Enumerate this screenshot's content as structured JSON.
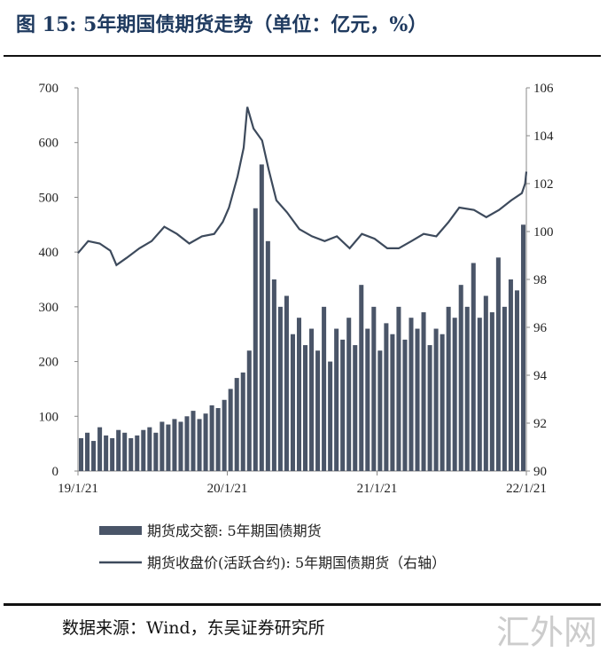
{
  "title": "图 15: 5年期国债期货走势（单位：亿元，%）",
  "source": "数据来源：Wind，东吴证券研究所",
  "watermark": "汇外网",
  "chart_data": {
    "type": "bar+line",
    "title": "图 15: 5年期国债期货走势（单位：亿元，%）",
    "y_left": {
      "range": [
        0,
        700
      ],
      "ticks": [
        "0",
        "100",
        "200",
        "300",
        "400",
        "500",
        "600",
        "700"
      ]
    },
    "y_right": {
      "range": [
        90,
        106
      ],
      "ticks": [
        "90",
        "92",
        "94",
        "96",
        "98",
        "100",
        "102",
        "104",
        "106"
      ]
    },
    "x_range": [
      "2019-01-21",
      "2022-01-21"
    ],
    "x_ticks": [
      {
        "date": "2019-01-21",
        "label": "19/1/21"
      },
      {
        "date": "2020-01-21",
        "label": "20/1/21"
      },
      {
        "date": "2021-01-21",
        "label": "21/1/21"
      },
      {
        "date": "2022-01-21",
        "label": "22/1/21"
      }
    ],
    "colors": {
      "bars": "#4a5568",
      "line": "#3d4a5c"
    },
    "legend": {
      "placement": "bottom",
      "entries": [
        "期货成交额: 5年期国债期货",
        "期货收盘价(活跃合约): 5年期国债期货（右轴）"
      ]
    },
    "series": [
      {
        "name": "期货成交额: 5年期国债期货",
        "type": "bar",
        "axis": "left",
        "values": [
          60,
          70,
          55,
          80,
          65,
          60,
          75,
          70,
          60,
          65,
          75,
          80,
          70,
          90,
          85,
          95,
          90,
          100,
          110,
          95,
          105,
          120,
          115,
          130,
          150,
          170,
          180,
          220,
          480,
          560,
          420,
          350,
          300,
          320,
          250,
          280,
          230,
          260,
          220,
          300,
          200,
          260,
          240,
          280,
          230,
          340,
          260,
          300,
          220,
          270,
          250,
          300,
          240,
          280,
          260,
          290,
          230,
          260,
          250,
          300,
          280,
          340,
          300,
          380,
          280,
          320,
          290,
          390,
          300,
          350,
          330,
          450
        ]
      },
      {
        "name": "期货收盘价(活跃合约): 5年期国债期货（右轴）",
        "type": "line",
        "axis": "right",
        "points": [
          [
            "2019-01-21",
            99.1
          ],
          [
            "2019-02-15",
            99.6
          ],
          [
            "2019-03-15",
            99.5
          ],
          [
            "2019-04-10",
            99.2
          ],
          [
            "2019-04-25",
            98.6
          ],
          [
            "2019-05-20",
            98.9
          ],
          [
            "2019-06-20",
            99.3
          ],
          [
            "2019-07-20",
            99.6
          ],
          [
            "2019-08-20",
            100.2
          ],
          [
            "2019-09-20",
            99.9
          ],
          [
            "2019-10-20",
            99.5
          ],
          [
            "2019-11-20",
            99.8
          ],
          [
            "2019-12-20",
            99.9
          ],
          [
            "2020-01-10",
            100.4
          ],
          [
            "2020-01-25",
            101.0
          ],
          [
            "2020-02-15",
            102.3
          ],
          [
            "2020-03-01",
            103.5
          ],
          [
            "2020-03-10",
            105.2
          ],
          [
            "2020-03-25",
            104.3
          ],
          [
            "2020-04-15",
            103.8
          ],
          [
            "2020-05-01",
            102.6
          ],
          [
            "2020-05-20",
            101.3
          ],
          [
            "2020-06-15",
            100.8
          ],
          [
            "2020-07-15",
            100.1
          ],
          [
            "2020-08-15",
            99.8
          ],
          [
            "2020-09-15",
            99.6
          ],
          [
            "2020-10-15",
            99.8
          ],
          [
            "2020-11-15",
            99.3
          ],
          [
            "2020-12-15",
            99.9
          ],
          [
            "2021-01-15",
            99.7
          ],
          [
            "2021-02-15",
            99.3
          ],
          [
            "2021-03-15",
            99.3
          ],
          [
            "2021-04-15",
            99.6
          ],
          [
            "2021-05-15",
            99.9
          ],
          [
            "2021-06-15",
            99.8
          ],
          [
            "2021-07-15",
            100.4
          ],
          [
            "2021-08-10",
            101.0
          ],
          [
            "2021-09-15",
            100.9
          ],
          [
            "2021-10-15",
            100.6
          ],
          [
            "2021-11-15",
            100.9
          ],
          [
            "2021-12-15",
            101.3
          ],
          [
            "2022-01-10",
            101.6
          ],
          [
            "2022-01-18",
            102.0
          ],
          [
            "2022-01-21",
            102.5
          ]
        ]
      }
    ]
  }
}
